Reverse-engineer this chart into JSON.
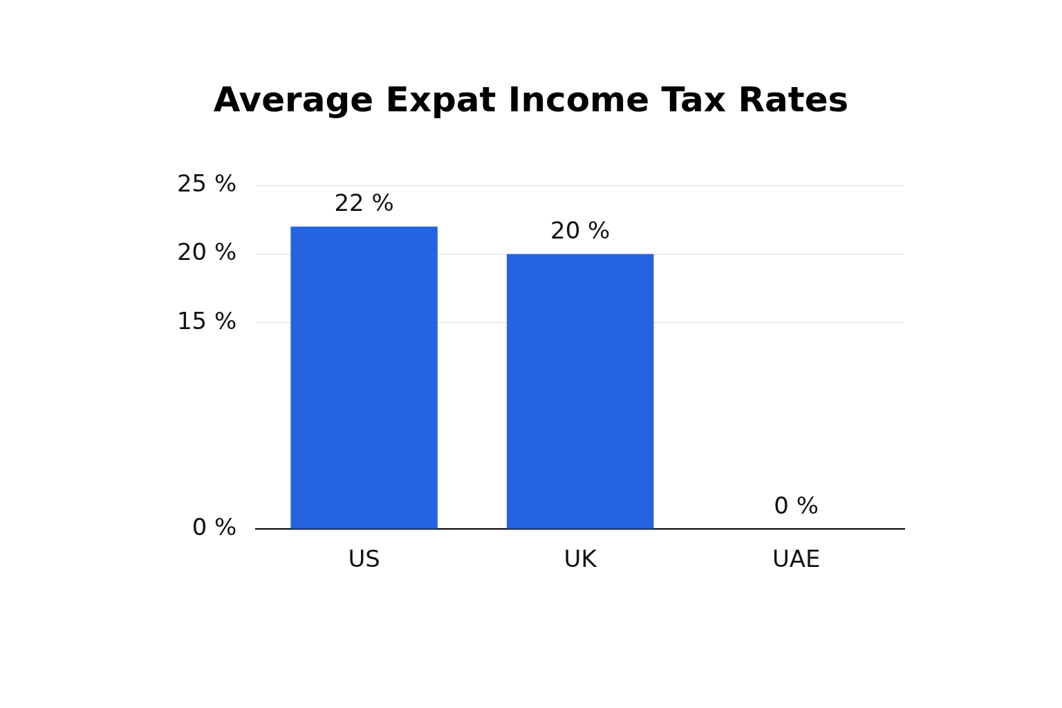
{
  "chart_data": {
    "type": "bar",
    "title": "Average Expat Income Tax Rates",
    "categories": [
      "US",
      "UK",
      "UAE"
    ],
    "values": [
      22,
      20,
      0
    ],
    "value_labels": [
      "22 %",
      "20 %",
      "0 %"
    ],
    "color": "#2563e0",
    "ylim": [
      0,
      25
    ],
    "yticks": [
      {
        "value": 0,
        "label": "0 %"
      },
      {
        "value": 15,
        "label": "15 %"
      },
      {
        "value": 20,
        "label": "20 %"
      },
      {
        "value": 25,
        "label": "25 %"
      }
    ],
    "grid": "y",
    "legend": false
  }
}
